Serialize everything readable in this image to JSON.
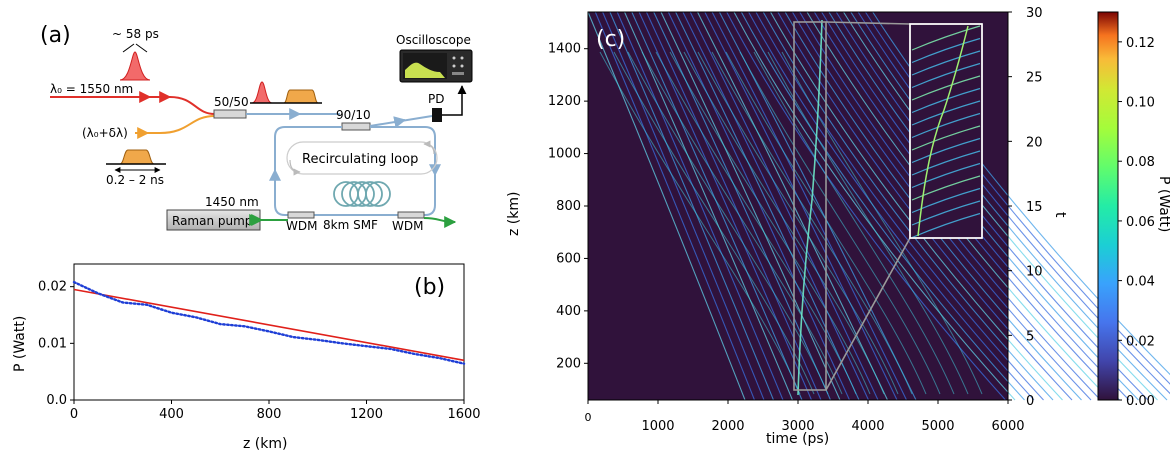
{
  "panel_a": {
    "label": "(a)",
    "pulse_width": "~ 58 ps",
    "lambda0": "λ₀ = 1550 nm",
    "lambda_shift": "(λ₀+δλ)",
    "pulse_range": "0.2 – 2 ns",
    "coupler_1": "50/50",
    "coupler_2": "90/10",
    "oscilloscope": "Oscilloscope",
    "photodiode": "PD",
    "loop": "Recirculating loop",
    "pump_wavelength": "1450 nm",
    "pump": "Raman pump",
    "wdm_left": "WDM",
    "fiber": "8km SMF",
    "wdm_right": "WDM",
    "colors": {
      "red": "#e0302a",
      "orange": "#f0a030",
      "loop_blue": "#8aaed0",
      "green": "#2ca040",
      "fiber": "#6fa8b0"
    }
  },
  "panel_b": {
    "label": "(b)",
    "chart_data": {
      "type": "line",
      "xlabel": "z (km)",
      "ylabel": "P (Watt)",
      "xlim": [
        0,
        1600
      ],
      "ylim": [
        0,
        0.024
      ],
      "xticks": [
        "0",
        "400",
        "800",
        "1200",
        "1600"
      ],
      "yticks": [
        "0.0",
        "0.01",
        "0.02"
      ],
      "series": [
        {
          "kind": "fit-line",
          "color": "#e0201a",
          "x": [
            0,
            1600
          ],
          "y": [
            0.0195,
            0.007
          ]
        },
        {
          "kind": "dotted-measurement",
          "color": "#1f3fd6",
          "x": [
            0,
            100,
            200,
            300,
            400,
            500,
            600,
            700,
            800,
            900,
            1000,
            1100,
            1200,
            1300,
            1400,
            1500,
            1600
          ],
          "y": [
            0.0208,
            0.0188,
            0.0172,
            0.0168,
            0.0154,
            0.0146,
            0.0134,
            0.013,
            0.0121,
            0.0111,
            0.0106,
            0.01,
            0.0095,
            0.009,
            0.0081,
            0.0074,
            0.0064
          ]
        }
      ]
    }
  },
  "panel_c": {
    "label": "(c)",
    "chart_data": {
      "type": "heatmap",
      "xlabel": "time (ps)",
      "ylabel": "z (km)",
      "right_axis_label": "t",
      "xlim": [
        0,
        6000
      ],
      "ylim": [
        60,
        1540
      ],
      "right_axis_range": [
        0,
        30
      ],
      "xticks": [
        "0",
        "1000",
        "2000",
        "3000",
        "4000",
        "5000",
        "6000"
      ],
      "yticks": [
        "200",
        "400",
        "600",
        "800",
        "1000",
        "1200",
        "1400"
      ],
      "right_ticks": [
        "0",
        "5",
        "10",
        "15",
        "20",
        "25",
        "30"
      ],
      "zoom_box_time": [
        2950,
        3400
      ],
      "colorbar": {
        "label": "P (Watt)",
        "range": [
          0,
          0.13
        ],
        "ticks": [
          "0.00",
          "0.02",
          "0.04",
          "0.06",
          "0.08",
          "0.10",
          "0.12"
        ]
      }
    }
  }
}
